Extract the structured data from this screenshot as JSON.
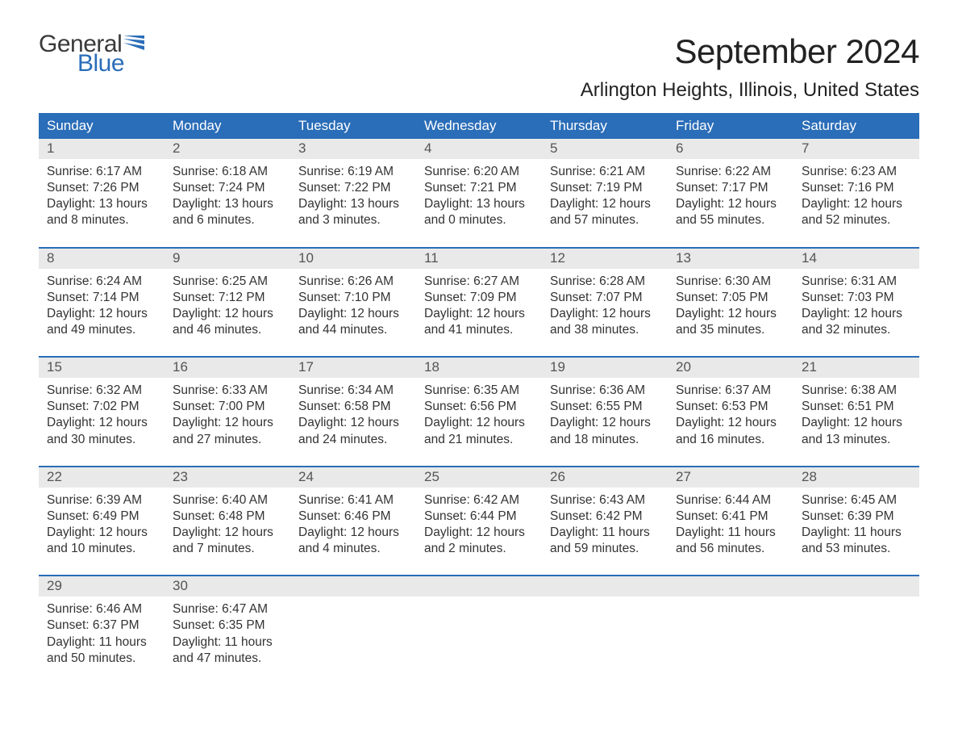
{
  "logo": {
    "line1": "General",
    "line2": "Blue",
    "accent_color": "#2a6db8"
  },
  "title": "September 2024",
  "location": "Arlington Heights, Illinois, United States",
  "colors": {
    "header_bg": "#2a6db8",
    "header_text": "#ffffff",
    "daynum_bg": "#e9e9e9",
    "daynum_text": "#555555",
    "body_text": "#333333",
    "week_border": "#2a6db8",
    "page_bg": "#ffffff"
  },
  "typography": {
    "title_fontsize": 42,
    "location_fontsize": 24,
    "weekday_fontsize": 17,
    "daynum_fontsize": 17,
    "body_fontsize": 15.5,
    "font_family": "Arial"
  },
  "weekdays": [
    "Sunday",
    "Monday",
    "Tuesday",
    "Wednesday",
    "Thursday",
    "Friday",
    "Saturday"
  ],
  "weeks": [
    [
      {
        "n": "1",
        "sunrise": "Sunrise: 6:17 AM",
        "sunset": "Sunset: 7:26 PM",
        "d1": "Daylight: 13 hours",
        "d2": "and 8 minutes."
      },
      {
        "n": "2",
        "sunrise": "Sunrise: 6:18 AM",
        "sunset": "Sunset: 7:24 PM",
        "d1": "Daylight: 13 hours",
        "d2": "and 6 minutes."
      },
      {
        "n": "3",
        "sunrise": "Sunrise: 6:19 AM",
        "sunset": "Sunset: 7:22 PM",
        "d1": "Daylight: 13 hours",
        "d2": "and 3 minutes."
      },
      {
        "n": "4",
        "sunrise": "Sunrise: 6:20 AM",
        "sunset": "Sunset: 7:21 PM",
        "d1": "Daylight: 13 hours",
        "d2": "and 0 minutes."
      },
      {
        "n": "5",
        "sunrise": "Sunrise: 6:21 AM",
        "sunset": "Sunset: 7:19 PM",
        "d1": "Daylight: 12 hours",
        "d2": "and 57 minutes."
      },
      {
        "n": "6",
        "sunrise": "Sunrise: 6:22 AM",
        "sunset": "Sunset: 7:17 PM",
        "d1": "Daylight: 12 hours",
        "d2": "and 55 minutes."
      },
      {
        "n": "7",
        "sunrise": "Sunrise: 6:23 AM",
        "sunset": "Sunset: 7:16 PM",
        "d1": "Daylight: 12 hours",
        "d2": "and 52 minutes."
      }
    ],
    [
      {
        "n": "8",
        "sunrise": "Sunrise: 6:24 AM",
        "sunset": "Sunset: 7:14 PM",
        "d1": "Daylight: 12 hours",
        "d2": "and 49 minutes."
      },
      {
        "n": "9",
        "sunrise": "Sunrise: 6:25 AM",
        "sunset": "Sunset: 7:12 PM",
        "d1": "Daylight: 12 hours",
        "d2": "and 46 minutes."
      },
      {
        "n": "10",
        "sunrise": "Sunrise: 6:26 AM",
        "sunset": "Sunset: 7:10 PM",
        "d1": "Daylight: 12 hours",
        "d2": "and 44 minutes."
      },
      {
        "n": "11",
        "sunrise": "Sunrise: 6:27 AM",
        "sunset": "Sunset: 7:09 PM",
        "d1": "Daylight: 12 hours",
        "d2": "and 41 minutes."
      },
      {
        "n": "12",
        "sunrise": "Sunrise: 6:28 AM",
        "sunset": "Sunset: 7:07 PM",
        "d1": "Daylight: 12 hours",
        "d2": "and 38 minutes."
      },
      {
        "n": "13",
        "sunrise": "Sunrise: 6:30 AM",
        "sunset": "Sunset: 7:05 PM",
        "d1": "Daylight: 12 hours",
        "d2": "and 35 minutes."
      },
      {
        "n": "14",
        "sunrise": "Sunrise: 6:31 AM",
        "sunset": "Sunset: 7:03 PM",
        "d1": "Daylight: 12 hours",
        "d2": "and 32 minutes."
      }
    ],
    [
      {
        "n": "15",
        "sunrise": "Sunrise: 6:32 AM",
        "sunset": "Sunset: 7:02 PM",
        "d1": "Daylight: 12 hours",
        "d2": "and 30 minutes."
      },
      {
        "n": "16",
        "sunrise": "Sunrise: 6:33 AM",
        "sunset": "Sunset: 7:00 PM",
        "d1": "Daylight: 12 hours",
        "d2": "and 27 minutes."
      },
      {
        "n": "17",
        "sunrise": "Sunrise: 6:34 AM",
        "sunset": "Sunset: 6:58 PM",
        "d1": "Daylight: 12 hours",
        "d2": "and 24 minutes."
      },
      {
        "n": "18",
        "sunrise": "Sunrise: 6:35 AM",
        "sunset": "Sunset: 6:56 PM",
        "d1": "Daylight: 12 hours",
        "d2": "and 21 minutes."
      },
      {
        "n": "19",
        "sunrise": "Sunrise: 6:36 AM",
        "sunset": "Sunset: 6:55 PM",
        "d1": "Daylight: 12 hours",
        "d2": "and 18 minutes."
      },
      {
        "n": "20",
        "sunrise": "Sunrise: 6:37 AM",
        "sunset": "Sunset: 6:53 PM",
        "d1": "Daylight: 12 hours",
        "d2": "and 16 minutes."
      },
      {
        "n": "21",
        "sunrise": "Sunrise: 6:38 AM",
        "sunset": "Sunset: 6:51 PM",
        "d1": "Daylight: 12 hours",
        "d2": "and 13 minutes."
      }
    ],
    [
      {
        "n": "22",
        "sunrise": "Sunrise: 6:39 AM",
        "sunset": "Sunset: 6:49 PM",
        "d1": "Daylight: 12 hours",
        "d2": "and 10 minutes."
      },
      {
        "n": "23",
        "sunrise": "Sunrise: 6:40 AM",
        "sunset": "Sunset: 6:48 PM",
        "d1": "Daylight: 12 hours",
        "d2": "and 7 minutes."
      },
      {
        "n": "24",
        "sunrise": "Sunrise: 6:41 AM",
        "sunset": "Sunset: 6:46 PM",
        "d1": "Daylight: 12 hours",
        "d2": "and 4 minutes."
      },
      {
        "n": "25",
        "sunrise": "Sunrise: 6:42 AM",
        "sunset": "Sunset: 6:44 PM",
        "d1": "Daylight: 12 hours",
        "d2": "and 2 minutes."
      },
      {
        "n": "26",
        "sunrise": "Sunrise: 6:43 AM",
        "sunset": "Sunset: 6:42 PM",
        "d1": "Daylight: 11 hours",
        "d2": "and 59 minutes."
      },
      {
        "n": "27",
        "sunrise": "Sunrise: 6:44 AM",
        "sunset": "Sunset: 6:41 PM",
        "d1": "Daylight: 11 hours",
        "d2": "and 56 minutes."
      },
      {
        "n": "28",
        "sunrise": "Sunrise: 6:45 AM",
        "sunset": "Sunset: 6:39 PM",
        "d1": "Daylight: 11 hours",
        "d2": "and 53 minutes."
      }
    ],
    [
      {
        "n": "29",
        "sunrise": "Sunrise: 6:46 AM",
        "sunset": "Sunset: 6:37 PM",
        "d1": "Daylight: 11 hours",
        "d2": "and 50 minutes."
      },
      {
        "n": "30",
        "sunrise": "Sunrise: 6:47 AM",
        "sunset": "Sunset: 6:35 PM",
        "d1": "Daylight: 11 hours",
        "d2": "and 47 minutes."
      },
      null,
      null,
      null,
      null,
      null
    ]
  ]
}
